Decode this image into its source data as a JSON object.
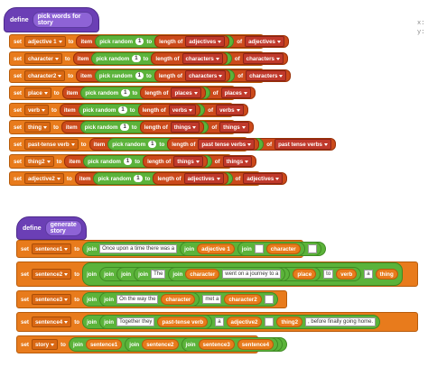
{
  "corner": {
    "xlabel": "x:",
    "ylabel": "y:"
  },
  "define1": {
    "keyword": "define",
    "name": "pick words for story"
  },
  "define2": {
    "keyword": "define",
    "name": "generate story"
  },
  "words": {
    "set": "set",
    "to": "to",
    "item": "item",
    "pick_random": "pick random",
    "one": "1",
    "to2": "to",
    "length_of": "length of",
    "of": "of",
    "join": "join",
    "r1": {
      "var": "adjective 1",
      "list": "adjectives"
    },
    "r2": {
      "var": "character",
      "list": "characters"
    },
    "r3": {
      "var": "character2",
      "list": "characters"
    },
    "r4": {
      "var": "place",
      "list": "places"
    },
    "r5": {
      "var": "verb",
      "list": "verbs"
    },
    "r6": {
      "var": "thing",
      "list": "things"
    },
    "r7": {
      "var": "past-tense verb",
      "list": "past tense verbs"
    },
    "r8": {
      "var": "thing2",
      "list": "things"
    },
    "r9": {
      "var": "adjective2",
      "list": "adjectives"
    }
  },
  "story": {
    "s1": {
      "var": "sentence1",
      "text1": "Once upon a time there was a",
      "v1": "adjective 1",
      "v2": "character"
    },
    "s2": {
      "var": "sentence2",
      "t_the": "The",
      "v1": "character",
      "t1": "went on a journey to a",
      "v2": "place",
      "t2": "to",
      "v3": "verb",
      "t3": "a",
      "v4": "thing"
    },
    "s3": {
      "var": "sentence3",
      "t1": "On the way the",
      "v1": "character",
      "t2": "met a",
      "v2": "character2"
    },
    "s4": {
      "var": "sentence4",
      "t1": "Together they",
      "v1": "past-tense verb",
      "t2": "a",
      "v2": "adjective2",
      "v3": "thing2",
      "t3": ", before finally going home."
    },
    "s5": {
      "var": "story",
      "v1": "sentence1",
      "v2": "sentence2",
      "v3": "sentence3",
      "v4": "sentence4"
    }
  },
  "colors": {
    "hat": "#6b3fb5",
    "variable": "#e87b1c",
    "list": "#c0392b",
    "operator": "#5bb33a"
  }
}
